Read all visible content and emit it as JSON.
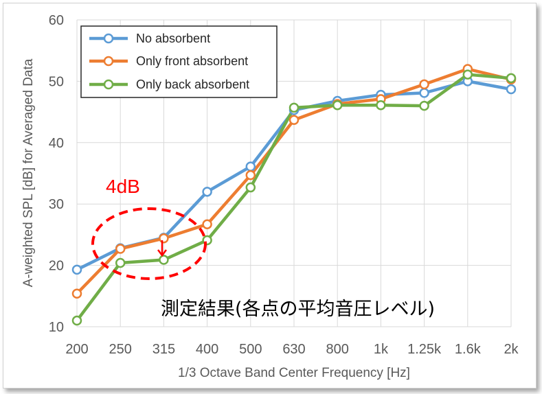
{
  "chart_data": {
    "type": "line",
    "categories": [
      "200",
      "250",
      "315",
      "400",
      "500",
      "630",
      "800",
      "1k",
      "1.25k",
      "1.6k",
      "2k"
    ],
    "series": [
      {
        "name": "No absorbent",
        "color": "#5b9bd5",
        "values": [
          19.3,
          22.8,
          24.5,
          32.0,
          36.1,
          45.3,
          46.8,
          47.8,
          48.1,
          50.0,
          48.7
        ]
      },
      {
        "name": "Only front absorbent",
        "color": "#ed7d31",
        "values": [
          15.4,
          22.7,
          24.4,
          26.7,
          34.7,
          43.7,
          46.3,
          47.1,
          49.5,
          52.0,
          50.3
        ]
      },
      {
        "name": "Only back absorbent",
        "color": "#70ad47",
        "values": [
          11.0,
          20.4,
          20.9,
          24.1,
          32.7,
          45.7,
          46.1,
          46.1,
          46.0,
          51.1,
          50.5
        ]
      }
    ],
    "xlabel": "1/3 Octave Band Center Frequency [Hz]",
    "ylabel": "A-weighted SPL [dB] for Averaged Data",
    "ylim": [
      10,
      60
    ],
    "yticks": [
      10,
      20,
      30,
      40,
      50,
      60
    ],
    "grid": true,
    "legend_position": "top-left",
    "annotations": {
      "difference_label": "4dB",
      "result_label": "測定結果(各点の平均音圧レベル)",
      "highlight_color": "#ff0000"
    }
  }
}
